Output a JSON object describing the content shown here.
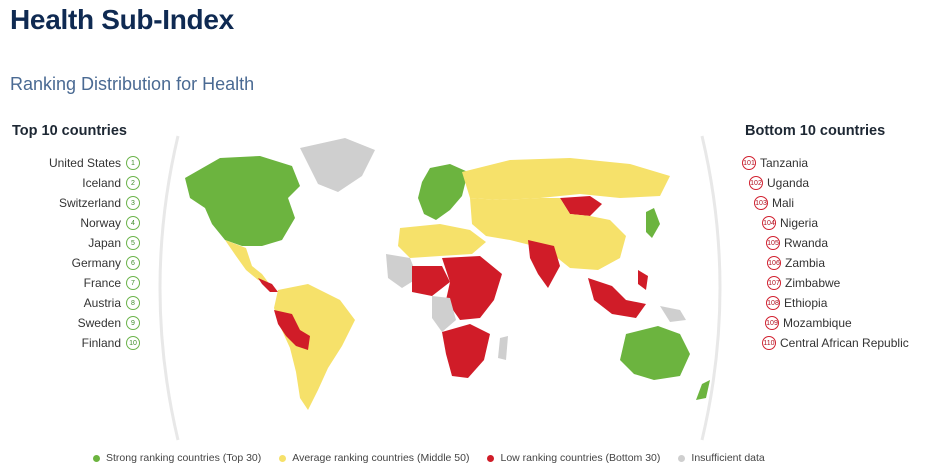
{
  "header": {
    "title": "Health Sub-Index",
    "subtitle": "Ranking Distribution for Health"
  },
  "top": {
    "heading": "Top 10 countries",
    "items": [
      {
        "rank": "1",
        "name": "United States"
      },
      {
        "rank": "2",
        "name": "Iceland"
      },
      {
        "rank": "3",
        "name": "Switzerland"
      },
      {
        "rank": "4",
        "name": "Norway"
      },
      {
        "rank": "5",
        "name": "Japan"
      },
      {
        "rank": "6",
        "name": "Germany"
      },
      {
        "rank": "7",
        "name": "France"
      },
      {
        "rank": "8",
        "name": "Austria"
      },
      {
        "rank": "9",
        "name": "Sweden"
      },
      {
        "rank": "10",
        "name": "Finland"
      }
    ]
  },
  "bottom": {
    "heading": "Bottom 10 countries",
    "items": [
      {
        "rank": "101",
        "name": "Tanzania"
      },
      {
        "rank": "102",
        "name": "Uganda"
      },
      {
        "rank": "103",
        "name": "Mali"
      },
      {
        "rank": "104",
        "name": "Nigeria"
      },
      {
        "rank": "105",
        "name": "Rwanda"
      },
      {
        "rank": "106",
        "name": "Zambia"
      },
      {
        "rank": "107",
        "name": "Zimbabwe"
      },
      {
        "rank": "108",
        "name": "Ethiopia"
      },
      {
        "rank": "109",
        "name": "Mozambique"
      },
      {
        "rank": "110",
        "name": "Central African Republic"
      }
    ]
  },
  "legend": [
    {
      "label": "Strong ranking countries (Top 30)",
      "color": "#6cb43f"
    },
    {
      "label": "Average ranking countries (Middle 50)",
      "color": "#f6e16a"
    },
    {
      "label": "Low ranking countries (Bottom 30)",
      "color": "#d01c28"
    },
    {
      "label": "Insufficient data",
      "color": "#cfcfcf"
    }
  ],
  "colors": {
    "strong": "#6cb43f",
    "average": "#f6e16a",
    "low": "#d01c28",
    "insufficient": "#cfcfcf"
  }
}
